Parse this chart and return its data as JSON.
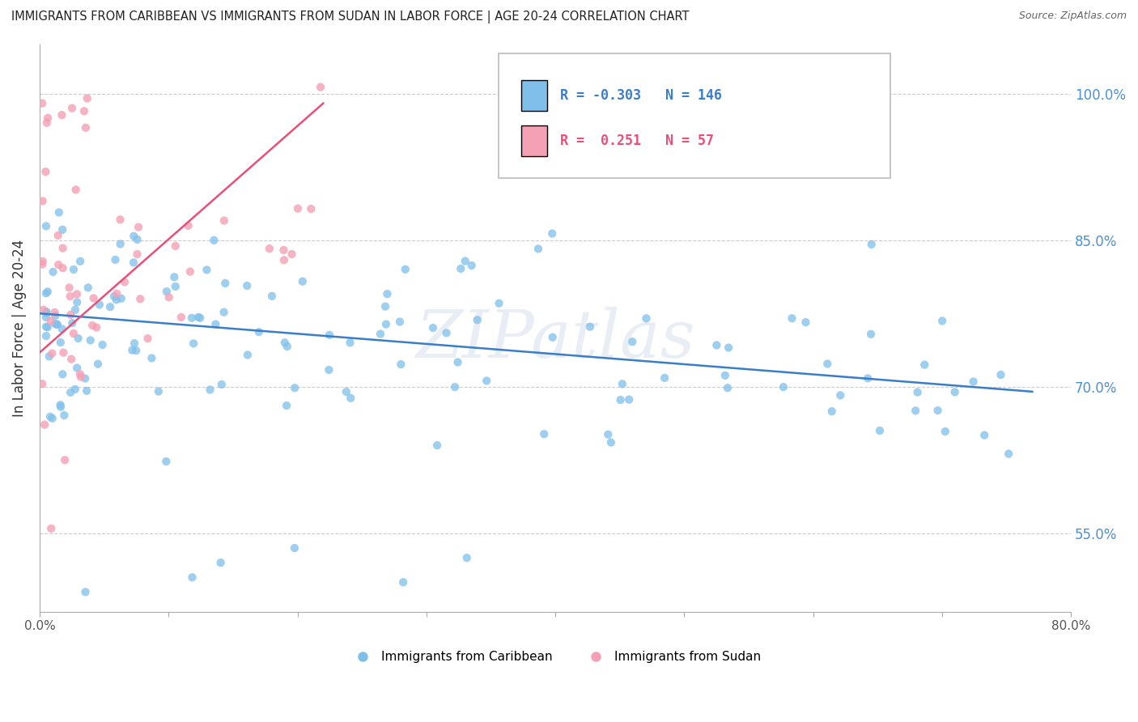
{
  "title": "IMMIGRANTS FROM CARIBBEAN VS IMMIGRANTS FROM SUDAN IN LABOR FORCE | AGE 20-24 CORRELATION CHART",
  "source": "Source: ZipAtlas.com",
  "ylabel": "In Labor Force | Age 20-24",
  "xlim": [
    0.0,
    0.8
  ],
  "ylim": [
    0.47,
    1.05
  ],
  "y_ticks": [
    0.55,
    0.7,
    0.85,
    1.0
  ],
  "y_tick_labels": [
    "55.0%",
    "70.0%",
    "85.0%",
    "100.0%"
  ],
  "x_ticks": [
    0.0,
    0.1,
    0.2,
    0.3,
    0.4,
    0.5,
    0.6,
    0.7,
    0.8
  ],
  "x_tick_labels": [
    "0.0%",
    "",
    "",
    "",
    "",
    "",
    "",
    "",
    "80.0%"
  ],
  "blue_color": "#7fbfea",
  "pink_color": "#f4a0b5",
  "blue_line_color": "#3a7dc9",
  "pink_line_color": "#e8507a",
  "right_axis_color": "#4a90d9",
  "legend_blue_label": "Immigrants from Caribbean",
  "legend_pink_label": "Immigrants from Sudan",
  "R_blue": -0.303,
  "N_blue": 146,
  "R_pink": 0.251,
  "N_pink": 57,
  "watermark": "ZIPatlas",
  "blue_line_x": [
    0.0,
    0.77
  ],
  "blue_line_y": [
    0.775,
    0.695
  ],
  "pink_line_x": [
    0.0,
    0.22
  ],
  "pink_line_y": [
    0.735,
    0.99
  ]
}
